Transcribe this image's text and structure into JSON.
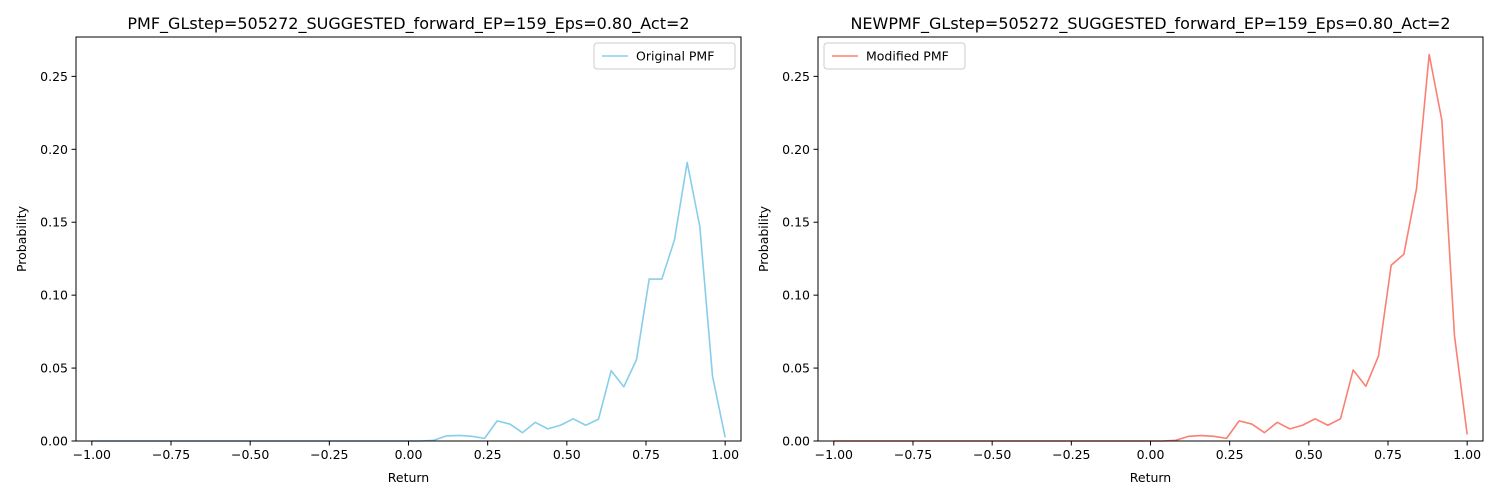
{
  "chart_data": [
    {
      "type": "line",
      "title": "PMF_GLstep=505272_SUGGESTED_forward_EP=159_Eps=0.80_Act=2",
      "xlabel": "Return",
      "ylabel": "Probability",
      "xlim": [
        -1.05,
        1.05
      ],
      "ylim": [
        0,
        0.277
      ],
      "xticks": [
        -1.0,
        -0.75,
        -0.5,
        -0.25,
        0.0,
        0.25,
        0.5,
        0.75,
        1.0
      ],
      "xtick_labels": [
        "−1.00",
        "−0.75",
        "−0.50",
        "−0.25",
        "0.00",
        "0.25",
        "0.50",
        "0.75",
        "1.00"
      ],
      "yticks": [
        0.0,
        0.05,
        0.1,
        0.15,
        0.2,
        0.25
      ],
      "ytick_labels": [
        "0.00",
        "0.05",
        "0.10",
        "0.15",
        "0.20",
        "0.25"
      ],
      "grid": false,
      "legend_position": "upper-right",
      "series": [
        {
          "name": "Original PMF",
          "color": "#87ceeb",
          "x": [
            -1.0,
            -0.96,
            -0.92,
            -0.88,
            -0.84,
            -0.8,
            -0.76,
            -0.72,
            -0.68,
            -0.64,
            -0.6,
            -0.56,
            -0.52,
            -0.48,
            -0.44,
            -0.4,
            -0.36,
            -0.32,
            -0.28,
            -0.24,
            -0.2,
            -0.16,
            -0.12,
            -0.08,
            -0.04,
            0.0,
            0.04,
            0.08,
            0.12,
            0.16,
            0.2,
            0.24,
            0.28,
            0.32,
            0.36,
            0.4,
            0.44,
            0.48,
            0.52,
            0.56,
            0.6,
            0.64,
            0.68,
            0.72,
            0.76,
            0.8,
            0.84,
            0.88,
            0.92,
            0.96,
            1.0
          ],
          "y": [
            0,
            0,
            0,
            0,
            0,
            0,
            0,
            0,
            0,
            0,
            0,
            0,
            0,
            0,
            0,
            0,
            0,
            0,
            0,
            0,
            0,
            0,
            0,
            0,
            0,
            0,
            0,
            0.0005,
            0.0035,
            0.0038,
            0.0032,
            0.0018,
            0.0138,
            0.0116,
            0.0057,
            0.0128,
            0.0083,
            0.0108,
            0.0152,
            0.0108,
            0.015,
            0.0482,
            0.0372,
            0.0558,
            0.111,
            0.111,
            0.138,
            0.191,
            0.147,
            0.0445,
            0.0025
          ]
        }
      ]
    },
    {
      "type": "line",
      "title": "NEWPMF_GLstep=505272_SUGGESTED_forward_EP=159_Eps=0.80_Act=2",
      "xlabel": "Return",
      "ylabel": "Probability",
      "xlim": [
        -1.05,
        1.05
      ],
      "ylim": [
        0,
        0.277
      ],
      "xticks": [
        -1.0,
        -0.75,
        -0.5,
        -0.25,
        0.0,
        0.25,
        0.5,
        0.75,
        1.0
      ],
      "xtick_labels": [
        "−1.00",
        "−0.75",
        "−0.50",
        "−0.25",
        "0.00",
        "0.25",
        "0.50",
        "0.75",
        "1.00"
      ],
      "yticks": [
        0.0,
        0.05,
        0.1,
        0.15,
        0.2,
        0.25
      ],
      "ytick_labels": [
        "0.00",
        "0.05",
        "0.10",
        "0.15",
        "0.20",
        "0.25"
      ],
      "grid": false,
      "legend_position": "upper-left",
      "series": [
        {
          "name": "Modified PMF",
          "color": "#fa8072",
          "x": [
            -1.0,
            -0.96,
            -0.92,
            -0.88,
            -0.84,
            -0.8,
            -0.76,
            -0.72,
            -0.68,
            -0.64,
            -0.6,
            -0.56,
            -0.52,
            -0.48,
            -0.44,
            -0.4,
            -0.36,
            -0.32,
            -0.28,
            -0.24,
            -0.2,
            -0.16,
            -0.12,
            -0.08,
            -0.04,
            0.0,
            0.04,
            0.08,
            0.12,
            0.16,
            0.2,
            0.24,
            0.28,
            0.32,
            0.36,
            0.4,
            0.44,
            0.48,
            0.52,
            0.56,
            0.6,
            0.64,
            0.68,
            0.72,
            0.76,
            0.8,
            0.84,
            0.88,
            0.92,
            0.96,
            1.0
          ],
          "y": [
            0,
            0,
            0,
            0,
            0,
            0,
            0,
            0,
            0,
            0,
            0,
            0,
            0,
            0,
            0,
            0,
            0,
            0,
            0,
            0,
            0,
            0,
            0,
            0,
            0,
            0,
            0,
            0.0005,
            0.0032,
            0.0037,
            0.0032,
            0.0018,
            0.0138,
            0.0116,
            0.0057,
            0.0128,
            0.0083,
            0.0108,
            0.0152,
            0.0108,
            0.0152,
            0.0487,
            0.0375,
            0.0582,
            0.1205,
            0.128,
            0.173,
            0.265,
            0.22,
            0.072,
            0.0045
          ]
        }
      ]
    }
  ]
}
